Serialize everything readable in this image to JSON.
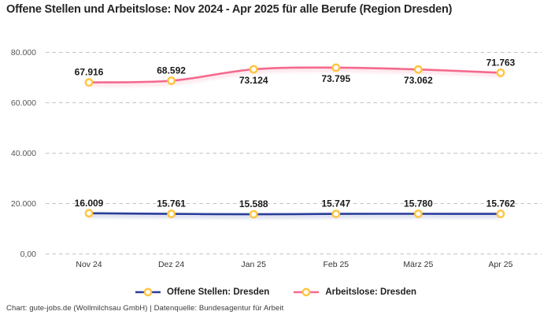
{
  "title": "Offene Stellen und Arbeitslose: Nov 2024 - Apr 2025 für alle Berufe (Region Dresden)",
  "footer": "Chart: gute-jobs.de (Wollmilchsau GmbH) | Datenquelle: Bundesagentur für Arbeit",
  "colors": {
    "background": "#ffffff",
    "series_blue": "#283d99",
    "series_pink": "#f4698c",
    "marker_ring": "#ffc53d",
    "marker_fill": "#ffffff",
    "grid": "#c2c2c2",
    "title_text": "#262626",
    "axis_text": "#555555",
    "data_label_text": "#1a1a1a"
  },
  "chart_data": {
    "type": "line",
    "title": "Offene Stellen und Arbeitslose: Nov 2024 - Apr 2025 für alle Berufe (Region Dresden)",
    "categories": [
      "Nov 24",
      "Dez 24",
      "Jan 25",
      "Feb 25",
      "März 25",
      "Apr 25"
    ],
    "series": [
      {
        "name": "Offene Stellen: Dresden",
        "color": "#283d99",
        "values": [
          16009,
          15761,
          15588,
          15747,
          15780,
          15762
        ],
        "labels": [
          "16.009",
          "15.761",
          "15.588",
          "15.747",
          "15.780",
          "15.762"
        ],
        "label_positions": [
          "above",
          "above",
          "above",
          "above",
          "above",
          "above"
        ]
      },
      {
        "name": "Arbeitslose: Dresden",
        "color": "#f4698c",
        "values": [
          67916,
          68592,
          73124,
          73795,
          73062,
          71763
        ],
        "labels": [
          "67.916",
          "68.592",
          "73.124",
          "73.795",
          "73.062",
          "71.763"
        ],
        "label_positions": [
          "above",
          "above",
          "below",
          "below",
          "below",
          "above"
        ]
      }
    ],
    "xlabel": "",
    "ylabel": "",
    "ylim": [
      0,
      80000
    ],
    "y_tick_values": [
      0,
      20000,
      40000,
      60000,
      80000
    ],
    "y_tick_labels": [
      "0,00",
      "20.000",
      "40.000",
      "60.000",
      "80.000"
    ],
    "grid": "horizontal-dashed",
    "legend_position": "bottom",
    "marker": {
      "shape": "circle",
      "fill": "#ffffff",
      "ring": "#ffc53d"
    }
  }
}
